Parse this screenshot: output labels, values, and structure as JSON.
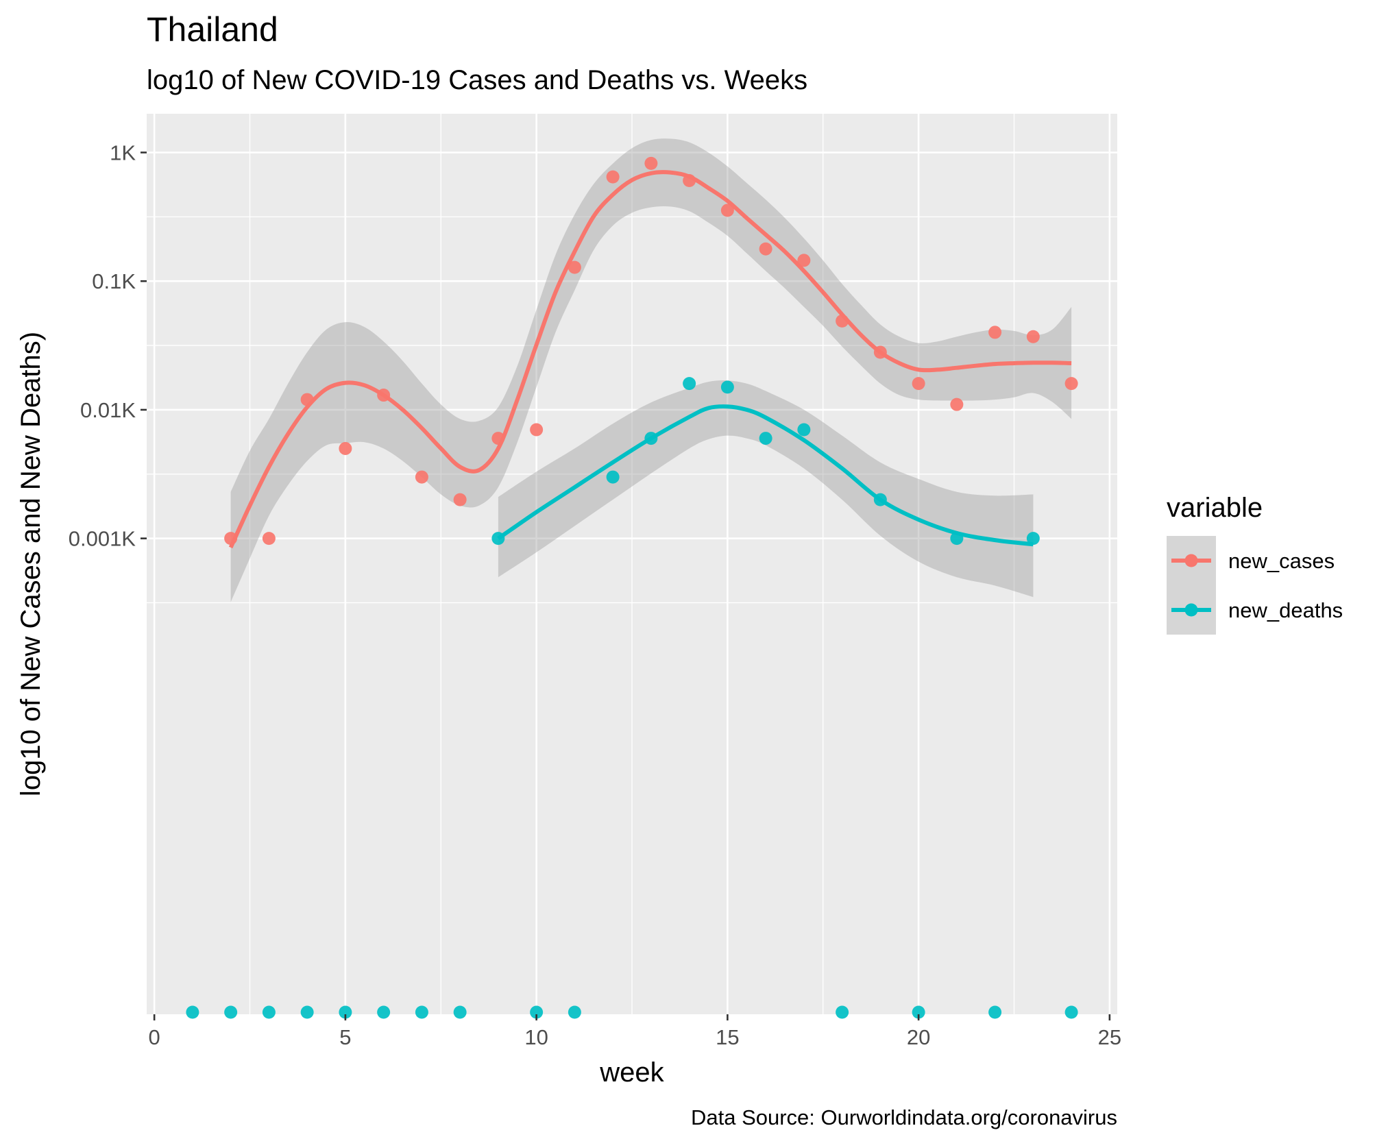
{
  "chart_data": {
    "type": "scatter",
    "title": "Thailand",
    "subtitle": "log10 of New COVID-19 Cases and Deaths vs. Weeks",
    "xlabel": "week",
    "ylabel": "log10 of New Cases and New Deaths)",
    "caption": "Data Source: Ourworldindata.org/coronavirus",
    "y_scale": "log10",
    "xlim": [
      -0.2,
      25.2
    ],
    "ylim": [
      0.0002,
      2000
    ],
    "x_ticks": [
      0,
      5,
      10,
      15,
      20,
      25
    ],
    "x_tick_labels": [
      "0",
      "5",
      "10",
      "15",
      "20",
      "25"
    ],
    "y_ticks": [
      1,
      10,
      100,
      1000
    ],
    "y_tick_labels": [
      "0.001K",
      "0.01K",
      "0.1K",
      "1K"
    ],
    "grid": true,
    "legend": {
      "title": "variable",
      "position": "right"
    },
    "zero_values_drawn_at_bottom": true,
    "series": [
      {
        "name": "new_cases",
        "color": "#F8766D",
        "points": [
          {
            "x": 2,
            "y": 1
          },
          {
            "x": 3,
            "y": 1
          },
          {
            "x": 4,
            "y": 12
          },
          {
            "x": 5,
            "y": 5
          },
          {
            "x": 6,
            "y": 13
          },
          {
            "x": 7,
            "y": 3
          },
          {
            "x": 8,
            "y": 2
          },
          {
            "x": 9,
            "y": 6
          },
          {
            "x": 10,
            "y": 7
          },
          {
            "x": 11,
            "y": 128
          },
          {
            "x": 12,
            "y": 646
          },
          {
            "x": 13,
            "y": 823
          },
          {
            "x": 14,
            "y": 605
          },
          {
            "x": 15,
            "y": 355
          },
          {
            "x": 16,
            "y": 178
          },
          {
            "x": 17,
            "y": 145
          },
          {
            "x": 18,
            "y": 49
          },
          {
            "x": 19,
            "y": 28
          },
          {
            "x": 20,
            "y": 16
          },
          {
            "x": 21,
            "y": 11
          },
          {
            "x": 22,
            "y": 40
          },
          {
            "x": 23,
            "y": 37
          },
          {
            "x": 24,
            "y": 16
          }
        ],
        "smooth": [
          [
            2,
            0.85
          ],
          [
            2.5,
            1.8
          ],
          [
            3,
            3.6
          ],
          [
            3.5,
            6.5
          ],
          [
            4,
            10.5
          ],
          [
            4.5,
            14.5
          ],
          [
            5,
            16.2
          ],
          [
            5.5,
            15.5
          ],
          [
            6,
            13
          ],
          [
            6.5,
            10
          ],
          [
            7,
            7.2
          ],
          [
            7.5,
            5
          ],
          [
            8,
            3.6
          ],
          [
            8.5,
            3.4
          ],
          [
            9,
            5
          ],
          [
            9.5,
            12
          ],
          [
            10,
            32
          ],
          [
            10.5,
            82
          ],
          [
            11,
            170
          ],
          [
            11.5,
            320
          ],
          [
            12,
            470
          ],
          [
            12.5,
            610
          ],
          [
            13,
            690
          ],
          [
            13.5,
            700
          ],
          [
            14,
            650
          ],
          [
            14.5,
            530
          ],
          [
            15,
            420
          ],
          [
            15.5,
            310
          ],
          [
            16,
            230
          ],
          [
            16.5,
            170
          ],
          [
            17,
            120
          ],
          [
            17.5,
            82
          ],
          [
            18,
            55
          ],
          [
            18.5,
            38
          ],
          [
            19,
            28
          ],
          [
            19.5,
            23
          ],
          [
            20,
            20.5
          ],
          [
            20.5,
            20.5
          ],
          [
            21,
            21.2
          ],
          [
            21.5,
            22
          ],
          [
            22,
            22.7
          ],
          [
            22.5,
            23
          ],
          [
            23,
            23.2
          ],
          [
            23.5,
            23.2
          ],
          [
            24,
            23
          ]
        ],
        "band_upper": [
          [
            2,
            2.3
          ],
          [
            2.5,
            4.8
          ],
          [
            3,
            8.5
          ],
          [
            3.5,
            16
          ],
          [
            4,
            28
          ],
          [
            4.5,
            42
          ],
          [
            5,
            48
          ],
          [
            5.5,
            44
          ],
          [
            6,
            34
          ],
          [
            6.5,
            24
          ],
          [
            7,
            16
          ],
          [
            7.5,
            11
          ],
          [
            8,
            8.5
          ],
          [
            8.5,
            8.2
          ],
          [
            9,
            10.5
          ],
          [
            9.5,
            22
          ],
          [
            10,
            60
          ],
          [
            10.5,
            160
          ],
          [
            11,
            330
          ],
          [
            11.5,
            570
          ],
          [
            12,
            820
          ],
          [
            12.5,
            1080
          ],
          [
            13,
            1250
          ],
          [
            13.5,
            1280
          ],
          [
            14,
            1200
          ],
          [
            14.5,
            1000
          ],
          [
            15,
            780
          ],
          [
            15.5,
            580
          ],
          [
            16,
            430
          ],
          [
            16.5,
            310
          ],
          [
            17,
            215
          ],
          [
            17.5,
            145
          ],
          [
            18,
            95
          ],
          [
            18.5,
            65
          ],
          [
            19,
            46
          ],
          [
            19.5,
            37
          ],
          [
            20,
            33
          ],
          [
            20.5,
            34
          ],
          [
            21,
            37
          ],
          [
            21.5,
            40
          ],
          [
            22,
            42
          ],
          [
            22.5,
            41
          ],
          [
            23,
            38
          ],
          [
            23.5,
            42
          ],
          [
            24,
            63
          ]
        ],
        "band_lower": [
          [
            2,
            0.32
          ],
          [
            2.5,
            0.7
          ],
          [
            3,
            1.5
          ],
          [
            3.5,
            2.6
          ],
          [
            4,
            4
          ],
          [
            4.5,
            5.3
          ],
          [
            5,
            5.5
          ],
          [
            5.5,
            5.6
          ],
          [
            6,
            5
          ],
          [
            6.5,
            4
          ],
          [
            7,
            3
          ],
          [
            7.5,
            2.2
          ],
          [
            8,
            1.8
          ],
          [
            8.5,
            1.8
          ],
          [
            9,
            2.5
          ],
          [
            9.5,
            5.6
          ],
          [
            10,
            15
          ],
          [
            10.5,
            40
          ],
          [
            11,
            85
          ],
          [
            11.5,
            175
          ],
          [
            12,
            270
          ],
          [
            12.5,
            340
          ],
          [
            13,
            375
          ],
          [
            13.5,
            380
          ],
          [
            14,
            350
          ],
          [
            14.5,
            285
          ],
          [
            15,
            225
          ],
          [
            15.5,
            165
          ],
          [
            16,
            120
          ],
          [
            16.5,
            88
          ],
          [
            17,
            63
          ],
          [
            17.5,
            45
          ],
          [
            18,
            31
          ],
          [
            18.5,
            22
          ],
          [
            19,
            16
          ],
          [
            19.5,
            13
          ],
          [
            20,
            12
          ],
          [
            20.5,
            11.8
          ],
          [
            21,
            11.8
          ],
          [
            21.5,
            11.8
          ],
          [
            22,
            12
          ],
          [
            22.5,
            12.5
          ],
          [
            23,
            13.5
          ],
          [
            23.5,
            11.5
          ],
          [
            24,
            8.5
          ]
        ]
      },
      {
        "name": "new_deaths",
        "color": "#00BFC4",
        "points": [
          {
            "x": 1,
            "y": 0
          },
          {
            "x": 2,
            "y": 0
          },
          {
            "x": 3,
            "y": 0
          },
          {
            "x": 4,
            "y": 0
          },
          {
            "x": 5,
            "y": 0
          },
          {
            "x": 6,
            "y": 0
          },
          {
            "x": 7,
            "y": 0
          },
          {
            "x": 8,
            "y": 0
          },
          {
            "x": 9,
            "y": 1
          },
          {
            "x": 10,
            "y": 0
          },
          {
            "x": 11,
            "y": 0
          },
          {
            "x": 12,
            "y": 3
          },
          {
            "x": 13,
            "y": 6
          },
          {
            "x": 14,
            "y": 16
          },
          {
            "x": 15,
            "y": 15
          },
          {
            "x": 16,
            "y": 6
          },
          {
            "x": 17,
            "y": 7
          },
          {
            "x": 18,
            "y": 0
          },
          {
            "x": 19,
            "y": 2
          },
          {
            "x": 20,
            "y": 0
          },
          {
            "x": 21,
            "y": 1
          },
          {
            "x": 22,
            "y": 0
          },
          {
            "x": 23,
            "y": 1
          },
          {
            "x": 24,
            "y": 0
          }
        ],
        "smooth": [
          [
            9,
            1.0
          ],
          [
            10,
            1.6
          ],
          [
            11,
            2.5
          ],
          [
            12,
            3.9
          ],
          [
            13,
            6.0
          ],
          [
            14,
            8.8
          ],
          [
            14.5,
            10.3
          ],
          [
            15,
            10.6
          ],
          [
            15.5,
            10
          ],
          [
            16,
            8.7
          ],
          [
            17,
            5.8
          ],
          [
            18,
            3.5
          ],
          [
            19,
            2.0
          ],
          [
            20,
            1.4
          ],
          [
            21,
            1.1
          ],
          [
            22,
            0.97
          ],
          [
            23,
            0.9
          ]
        ],
        "band_upper": [
          [
            9,
            2.1
          ],
          [
            10,
            3.3
          ],
          [
            11,
            5.0
          ],
          [
            12,
            7.8
          ],
          [
            13,
            11.4
          ],
          [
            14,
            14.8
          ],
          [
            14.5,
            16.5
          ],
          [
            15,
            16.9
          ],
          [
            15.5,
            16
          ],
          [
            16,
            14
          ],
          [
            17,
            10
          ],
          [
            18,
            6.3
          ],
          [
            19,
            3.9
          ],
          [
            20,
            2.9
          ],
          [
            21,
            2.3
          ],
          [
            22,
            2.15
          ],
          [
            23,
            2.2
          ]
        ],
        "band_lower": [
          [
            9,
            0.5
          ],
          [
            10,
            0.78
          ],
          [
            11,
            1.25
          ],
          [
            12,
            2.0
          ],
          [
            13,
            3.2
          ],
          [
            14,
            5.0
          ],
          [
            14.5,
            5.9
          ],
          [
            15,
            6.3
          ],
          [
            15.5,
            6.0
          ],
          [
            16,
            5.3
          ],
          [
            17,
            3.5
          ],
          [
            18,
            2.0
          ],
          [
            19,
            1.05
          ],
          [
            20,
            0.66
          ],
          [
            21,
            0.5
          ],
          [
            22,
            0.43
          ],
          [
            23,
            0.35
          ]
        ]
      }
    ]
  }
}
